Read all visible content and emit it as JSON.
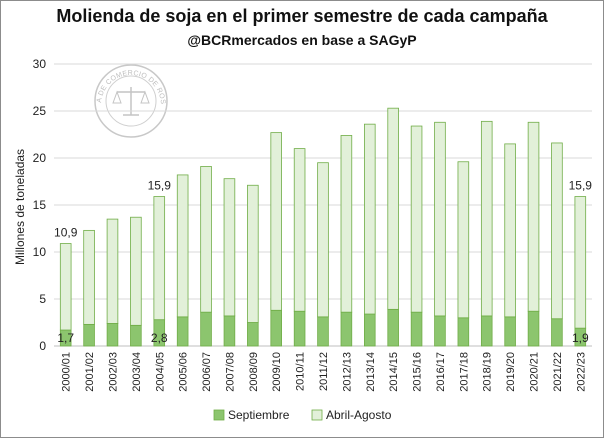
{
  "chart_data": {
    "type": "bar",
    "stacked": true,
    "title": "Molienda de soja en el primer semestre de cada campaña",
    "subtitle": "@BCRmercados en base a SAGyP",
    "ylabel": "Millones de toneladas",
    "xlabel": "",
    "ylim": [
      0,
      30
    ],
    "yticks": [
      0,
      5,
      10,
      15,
      20,
      25,
      30
    ],
    "grid": true,
    "legend_position": "bottom",
    "watermark_text": "BOLSA DE COMERCIO DE ROSARIO",
    "categories": [
      "2000/01",
      "2001/02",
      "2002/03",
      "2003/04",
      "2004/05",
      "2005/06",
      "2006/07",
      "2007/08",
      "2008/09",
      "2009/10",
      "2010/11",
      "2011/12",
      "2012/13",
      "2013/14",
      "2014/15",
      "2015/16",
      "2016/17",
      "2017/18",
      "2018/19",
      "2019/20",
      "2020/21",
      "2021/22",
      "2022/23"
    ],
    "series": [
      {
        "name": "Septiembre",
        "color": "#8cc56e",
        "values": [
          1.7,
          2.3,
          2.4,
          2.2,
          2.8,
          3.1,
          3.6,
          3.2,
          2.5,
          3.8,
          3.7,
          3.1,
          3.6,
          3.4,
          3.9,
          3.6,
          3.2,
          3.0,
          3.2,
          3.1,
          3.7,
          2.9,
          1.9
        ]
      },
      {
        "name": "Abril-Agosto",
        "color": "#e2f0d9",
        "values": [
          9.2,
          10.0,
          11.1,
          11.5,
          13.1,
          15.1,
          15.5,
          14.6,
          14.6,
          18.9,
          17.3,
          16.4,
          18.8,
          20.2,
          21.4,
          19.8,
          20.6,
          16.6,
          20.7,
          18.4,
          20.1,
          18.7,
          14.0
        ]
      }
    ],
    "data_labels": [
      {
        "category": "2000/01",
        "series": "Septiembre",
        "text": "1,7"
      },
      {
        "category": "2000/01",
        "series": "total",
        "text": "10,9"
      },
      {
        "category": "2004/05",
        "series": "Septiembre",
        "text": "2,8"
      },
      {
        "category": "2004/05",
        "series": "total",
        "text": "15,9"
      },
      {
        "category": "2022/23",
        "series": "Septiembre",
        "text": "1,9"
      },
      {
        "category": "2022/23",
        "series": "total",
        "text": "15,9"
      }
    ]
  }
}
